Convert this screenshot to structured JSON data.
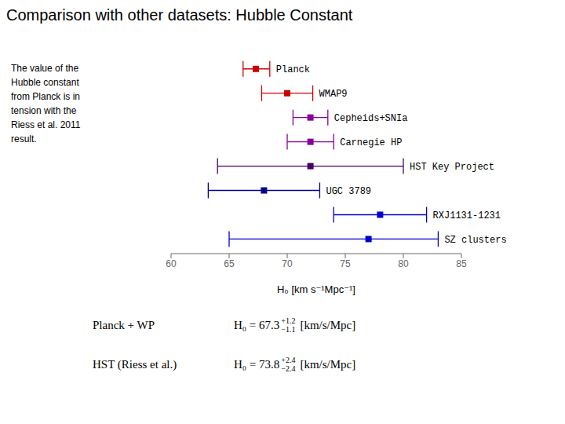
{
  "chart_data": {
    "type": "errorbar",
    "title": "Comparison with other datasets: Hubble Constant",
    "annotation": "The value of the\nHubble constant\nfrom Planck is in\ntension with the\nRiess et al. 2011\nresult.",
    "x_label": "H₀ [km s⁻¹Mpc⁻¹]",
    "categories": [
      "Planck",
      "WMAP9",
      "Cepheids+SNIa",
      "Carnegie HP",
      "HST Key Project",
      "UGC 3789",
      "RXJ1131-1231",
      "SZ clusters"
    ],
    "values": [
      67.3,
      70.0,
      72.0,
      72.0,
      72.0,
      68.0,
      78.0,
      77.0
    ],
    "err_lo": [
      1.1,
      2.2,
      1.5,
      2.0,
      8.0,
      4.8,
      4.0,
      12.0
    ],
    "err_hi": [
      1.2,
      2.2,
      1.5,
      2.0,
      8.0,
      4.8,
      4.0,
      6.0
    ],
    "colors": [
      "#cc0000",
      "#cc0000",
      "#880099",
      "#880099",
      "#440066",
      "#000088",
      "#0000cc",
      "#0000cc"
    ],
    "xlim": [
      60,
      85
    ],
    "xticks": [
      60,
      65,
      70,
      75,
      80,
      85
    ],
    "grid": false,
    "tick_labels": "x",
    "marker": "square",
    "annotations": [
      {
        "label": "Planck + WP",
        "text": "H₀ = 67.3",
        "sup": "+1.2",
        "sub": "−1.1",
        "unit": "[km/s/Mpc]"
      },
      {
        "label": "HST (Riess et al.)",
        "text": "H₀ = 73.8",
        "sup": "+2.4",
        "sub": "−2.4",
        "unit": "[km/s/Mpc]"
      }
    ]
  }
}
